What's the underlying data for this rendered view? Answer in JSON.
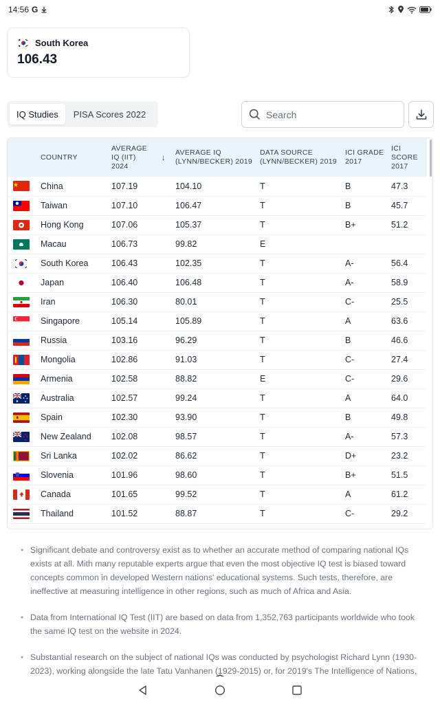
{
  "status_bar": {
    "time": "14:56",
    "g_label": "G"
  },
  "stat_card": {
    "country": "South Korea",
    "value": "106.43"
  },
  "tabs": [
    {
      "label": "IQ Studies",
      "active": true
    },
    {
      "label": "PISA Scores 2022",
      "active": false
    }
  ],
  "search": {
    "placeholder": "Search"
  },
  "table": {
    "headers": {
      "country": "COUNTRY",
      "avg_iq_iit": "AVERAGE IQ (IIT) 2024",
      "avg_iq_lynn": "AVERAGE IQ (LYNN/BECKER) 2019",
      "data_source": "DATA SOURCE (LYNN/BECKER) 2019",
      "ici_grade": "ICI GRADE 2017",
      "ici_score": "ICI SCORE 2017",
      "sort_indicator": "↓"
    },
    "rows": [
      {
        "flag": "china-flag",
        "country": "China",
        "iit": "107.19",
        "lynn": "104.10",
        "source": "T",
        "grade": "B",
        "score": "47.3"
      },
      {
        "flag": "taiwan-flag",
        "country": "Taiwan",
        "iit": "107.10",
        "lynn": "106.47",
        "source": "T",
        "grade": "B",
        "score": "45.7"
      },
      {
        "flag": "hong-kong-flag",
        "country": "Hong Kong",
        "iit": "107.06",
        "lynn": "105.37",
        "source": "T",
        "grade": "B+",
        "score": "51.2"
      },
      {
        "flag": "macau-flag",
        "country": "Macau",
        "iit": "106.73",
        "lynn": "99.82",
        "source": "E",
        "grade": "",
        "score": ""
      },
      {
        "flag": "south-korea-flag",
        "country": "South Korea",
        "iit": "106.43",
        "lynn": "102.35",
        "source": "T",
        "grade": "A-",
        "score": "56.4"
      },
      {
        "flag": "japan-flag",
        "country": "Japan",
        "iit": "106.40",
        "lynn": "106.48",
        "source": "T",
        "grade": "A-",
        "score": "58.9"
      },
      {
        "flag": "iran-flag",
        "country": "Iran",
        "iit": "106.30",
        "lynn": "80.01",
        "source": "T",
        "grade": "C-",
        "score": "25.5"
      },
      {
        "flag": "singapore-flag",
        "country": "Singapore",
        "iit": "105.14",
        "lynn": "105.89",
        "source": "T",
        "grade": "A",
        "score": "63.6"
      },
      {
        "flag": "russia-flag",
        "country": "Russia",
        "iit": "103.16",
        "lynn": "96.29",
        "source": "T",
        "grade": "B",
        "score": "46.6"
      },
      {
        "flag": "mongolia-flag",
        "country": "Mongolia",
        "iit": "102.86",
        "lynn": "91.03",
        "source": "T",
        "grade": "C-",
        "score": "27.4"
      },
      {
        "flag": "armenia-flag",
        "country": "Armenia",
        "iit": "102.58",
        "lynn": "88.82",
        "source": "E",
        "grade": "C-",
        "score": "29.6"
      },
      {
        "flag": "australia-flag",
        "country": "Australia",
        "iit": "102.57",
        "lynn": "99.24",
        "source": "T",
        "grade": "A",
        "score": "64.0"
      },
      {
        "flag": "spain-flag",
        "country": "Spain",
        "iit": "102.30",
        "lynn": "93.90",
        "source": "T",
        "grade": "B",
        "score": "49.8"
      },
      {
        "flag": "new-zealand-flag",
        "country": "New Zealand",
        "iit": "102.08",
        "lynn": "98.57",
        "source": "T",
        "grade": "A-",
        "score": "57.3"
      },
      {
        "flag": "sri-lanka-flag",
        "country": "Sri Lanka",
        "iit": "102.02",
        "lynn": "86.62",
        "source": "T",
        "grade": "D+",
        "score": "23.2"
      },
      {
        "flag": "slovenia-flag",
        "country": "Slovenia",
        "iit": "101.96",
        "lynn": "98.60",
        "source": "T",
        "grade": "B+",
        "score": "51.5"
      },
      {
        "flag": "canada-flag",
        "country": "Canada",
        "iit": "101.65",
        "lynn": "99.52",
        "source": "T",
        "grade": "A",
        "score": "61.2"
      },
      {
        "flag": "thailand-flag",
        "country": "Thailand",
        "iit": "101.52",
        "lynn": "88.87",
        "source": "T",
        "grade": "C-",
        "score": "29.2"
      }
    ]
  },
  "notes": [
    "Significant debate and controversy exist as to whether an accurate method of comparing national IQs exists at all. Mith many reputable experts argue that even the most objective IQ test is biased toward concepts common in developed Western nations' educational systems. Such tests, therefore, are ineffective at measuring intelligence in other regions, such as much of Africa and Asia.",
    "Data from International IQ Test (IIT) are based on data from 1,352,763 participants worldwide who took the same IQ test on the website in 2024.",
    "Substantial research on the subject of national IQs was conducted by psychologist Richard Lynn (1930-2023), working alongside the late Tatu Vanhanen (1929-2015) or, for 2019's The Intelligence of Nations,"
  ],
  "colors": {
    "header_bg": "#eaf4fd",
    "border": "#e5e7eb",
    "muted_text": "#6b7280"
  }
}
